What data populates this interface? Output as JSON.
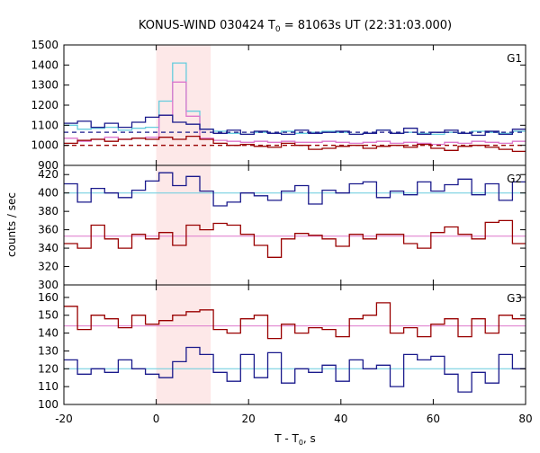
{
  "chart_data": {
    "type": "line",
    "title": {
      "prefix": "KONUS-WIND 030424 T",
      "sub": "0",
      "suffix": " = 81063s UT (22:31:03.000)"
    },
    "xlabel": {
      "prefix": "T - T",
      "sub": "0",
      "suffix": ", s"
    },
    "ylabel": "counts / sec",
    "xlim": [
      -20,
      80
    ],
    "x_ticks": [
      -20,
      0,
      20,
      40,
      60,
      80
    ],
    "highlight_interval": [
      0,
      11.8
    ],
    "colors": {
      "dark_blue": "#1a1a8c",
      "dark_red": "#990000",
      "light_blue": "#66ccdd",
      "pink": "#dd77cc",
      "highlight": "#fde8e8"
    },
    "panels": [
      {
        "label": "G1",
        "ylim": [
          900,
          1500
        ],
        "y_ticks": [
          900,
          1000,
          1100,
          1200,
          1300,
          1400,
          1500
        ],
        "x_start": -20,
        "bin_width": 2.944,
        "series": [
          {
            "color": "light_blue",
            "values": [
              1100,
              1080,
              1085,
              1090,
              1075,
              1085,
              1090,
              1220,
              1410,
              1170,
              1080,
              1070,
              1060,
              1055,
              1065,
              1060,
              1070,
              1060,
              1065,
              1070,
              1065,
              1055,
              1060,
              1075,
              1060,
              1065,
              1060,
              1055,
              1065,
              1060,
              1070,
              1065,
              1060,
              1070
            ]
          },
          {
            "color": "pink",
            "values": [
              1035,
              1020,
              1030,
              1040,
              1030,
              1035,
              1040,
              1150,
              1315,
              1145,
              1035,
              1025,
              1020,
              1015,
              1020,
              1015,
              1020,
              1015,
              1015,
              1020,
              1015,
              1010,
              1015,
              1020,
              1010,
              1015,
              1010,
              1005,
              1015,
              1010,
              1020,
              1015,
              1010,
              1020
            ]
          },
          {
            "color": "dark_blue",
            "values": [
              1110,
              1120,
              1090,
              1110,
              1090,
              1115,
              1140,
              1150,
              1115,
              1105,
              1080,
              1060,
              1075,
              1055,
              1070,
              1060,
              1055,
              1075,
              1060,
              1065,
              1070,
              1055,
              1060,
              1075,
              1060,
              1085,
              1055,
              1065,
              1075,
              1060,
              1050,
              1070,
              1055,
              1080
            ]
          },
          {
            "color": "dark_red",
            "values": [
              1010,
              1025,
              1030,
              1020,
              1030,
              1035,
              1030,
              1040,
              1030,
              1045,
              1030,
              1010,
              1000,
              1005,
              995,
              990,
              1010,
              1000,
              980,
              985,
              995,
              1000,
              985,
              995,
              1000,
              990,
              1005,
              985,
              975,
              995,
              1000,
              990,
              980,
              970
            ]
          }
        ],
        "dashed_levels": [
          {
            "color": "dark_blue",
            "value": 1065
          },
          {
            "color": "dark_red",
            "value": 1000
          }
        ],
        "flat_levels": []
      },
      {
        "label": "G2",
        "ylim": [
          300,
          430
        ],
        "y_ticks": [
          300,
          320,
          340,
          360,
          380,
          400,
          420
        ],
        "x_start": -20,
        "bin_width": 2.944,
        "series": [
          {
            "color": "dark_blue",
            "values": [
              410,
              390,
              405,
              400,
              395,
              403,
              413,
              422,
              408,
              418,
              402,
              386,
              390,
              400,
              397,
              392,
              402,
              408,
              388,
              403,
              400,
              410,
              412,
              395,
              402,
              398,
              412,
              402,
              409,
              415,
              398,
              410,
              392,
              412
            ]
          },
          {
            "color": "dark_red",
            "values": [
              345,
              340,
              365,
              350,
              340,
              355,
              350,
              357,
              343,
              365,
              360,
              367,
              365,
              355,
              343,
              330,
              350,
              356,
              354,
              350,
              342,
              355,
              350,
              355,
              355,
              345,
              340,
              357,
              363,
              355,
              350,
              368,
              370,
              345
            ]
          }
        ],
        "dashed_levels": [],
        "flat_levels": [
          {
            "color": "light_blue",
            "value": 400
          },
          {
            "color": "pink",
            "value": 353
          }
        ]
      },
      {
        "label": "G3",
        "ylim": [
          100,
          167
        ],
        "y_ticks": [
          100,
          110,
          120,
          130,
          140,
          150,
          160
        ],
        "x_start": -20,
        "bin_width": 2.944,
        "series": [
          {
            "color": "dark_blue",
            "values": [
              125,
              117,
              120,
              118,
              125,
              120,
              117,
              115,
              124,
              132,
              128,
              118,
              113,
              128,
              115,
              129,
              112,
              120,
              118,
              122,
              113,
              125,
              120,
              122,
              110,
              128,
              125,
              127,
              117,
              107,
              118,
              112,
              128,
              120
            ]
          },
          {
            "color": "dark_red",
            "values": [
              155,
              142,
              150,
              148,
              143,
              150,
              145,
              147,
              150,
              152,
              153,
              142,
              140,
              148,
              150,
              137,
              145,
              140,
              143,
              142,
              138,
              148,
              150,
              157,
              140,
              143,
              138,
              145,
              148,
              138,
              148,
              140,
              150,
              148
            ]
          }
        ],
        "dashed_levels": [],
        "flat_levels": [
          {
            "color": "light_blue",
            "value": 120
          },
          {
            "color": "pink",
            "value": 144
          }
        ]
      }
    ]
  }
}
